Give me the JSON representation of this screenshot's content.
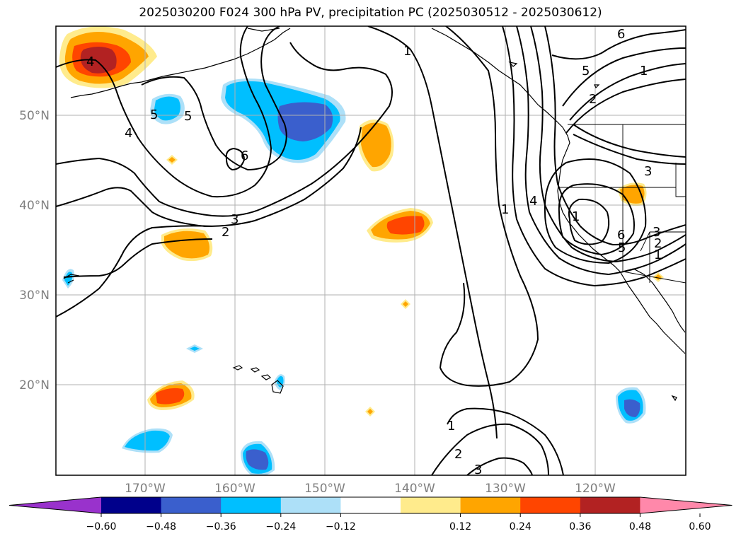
{
  "title": "2025030200 F024 300 hPa PV, precipitation PC (2025030512 - 2025030612)",
  "lat_labels": [
    "50°N",
    "40°N",
    "30°N",
    "20°N"
  ],
  "lon_labels": [
    "170°W",
    "160°W",
    "150°W",
    "140°W",
    "130°W",
    "120°W"
  ],
  "contour_labels": [
    "1",
    "2",
    "3",
    "4",
    "5",
    "6"
  ],
  "colorbar": {
    "ticks": [
      "−0.60",
      "−0.48",
      "−0.36",
      "−0.24",
      "−0.12",
      "0.12",
      "0.24",
      "0.36",
      "0.48",
      "0.60"
    ],
    "colors": [
      "#9932CC",
      "#00008B",
      "#3A5FCD",
      "#00BFFF",
      "#ADE0F8",
      "#FFFFFF",
      "#FFEB8C",
      "#FFA500",
      "#FF4500",
      "#B22222",
      "#FF88AA"
    ]
  },
  "colors": {
    "dark_blue": "#3A5FCD",
    "blue": "#00BFFF",
    "light_blue": "#ADE0F8",
    "light_yellow": "#FFEB8C",
    "orange": "#FFA500",
    "red_orange": "#FF4500",
    "dark_red": "#B22222"
  }
}
